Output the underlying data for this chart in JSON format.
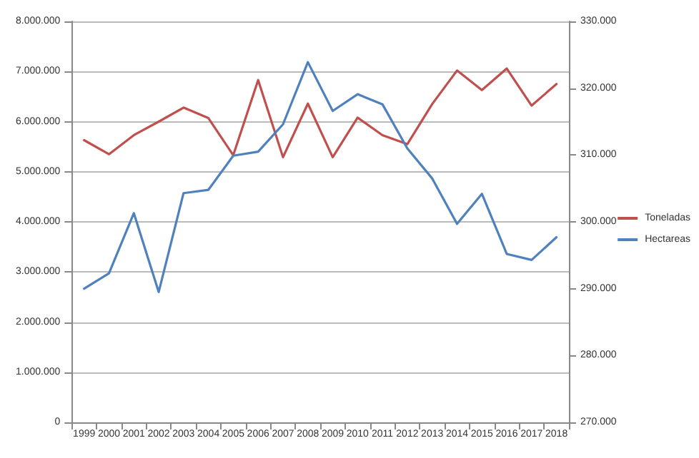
{
  "chart_data": {
    "type": "line",
    "categories": [
      "1999",
      "2000",
      "2001",
      "2002",
      "2003",
      "2004",
      "2005",
      "2006",
      "2007",
      "2008",
      "2009",
      "2010",
      "2011",
      "2012",
      "2013",
      "2014",
      "2015",
      "2016",
      "2017",
      "2018"
    ],
    "series": [
      {
        "name": "Toneladas",
        "color": "#c0504d",
        "values": [
          5630000,
          5350000,
          5730000,
          6000000,
          6280000,
          6070000,
          5330000,
          6830000,
          5290000,
          6360000,
          5290000,
          6080000,
          5730000,
          5550000,
          6350000,
          7020000,
          6630000,
          7060000,
          6320000,
          6750000
        ]
      },
      {
        "name": "Hectareas",
        "color": "#4f81bd",
        "axis": "y2",
        "values": [
          290000,
          292300,
          301300,
          289500,
          304300,
          304800,
          309900,
          310500,
          314600,
          323900,
          316600,
          319100,
          317600,
          311000,
          306500,
          299700,
          304200,
          295200,
          294300,
          297700
        ]
      }
    ],
    "ylim": [
      0,
      8000000
    ],
    "yticks": [
      {
        "value": 0,
        "label": "0"
      },
      {
        "value": 1000000,
        "label": "1.000.000"
      },
      {
        "value": 2000000,
        "label": "2.000.000"
      },
      {
        "value": 3000000,
        "label": "3.000.000"
      },
      {
        "value": 4000000,
        "label": "4.000.000"
      },
      {
        "value": 5000000,
        "label": "5.000.000"
      },
      {
        "value": 6000000,
        "label": "6.000.000"
      },
      {
        "value": 7000000,
        "label": "7.000.000"
      },
      {
        "value": 8000000,
        "label": "8.000.000"
      }
    ],
    "y2lim": [
      270000,
      330000
    ],
    "y2ticks": [
      {
        "value": 270000,
        "label": "270.000"
      },
      {
        "value": 280000,
        "label": "280.000"
      },
      {
        "value": 290000,
        "label": "290.000"
      },
      {
        "value": 300000,
        "label": "300.000"
      },
      {
        "value": 310000,
        "label": "310.000"
      },
      {
        "value": 320000,
        "label": "320.000"
      },
      {
        "value": 330000,
        "label": "330.000"
      }
    ],
    "grid": "y",
    "legend": "right",
    "marker": "none",
    "line_style": "solid"
  }
}
